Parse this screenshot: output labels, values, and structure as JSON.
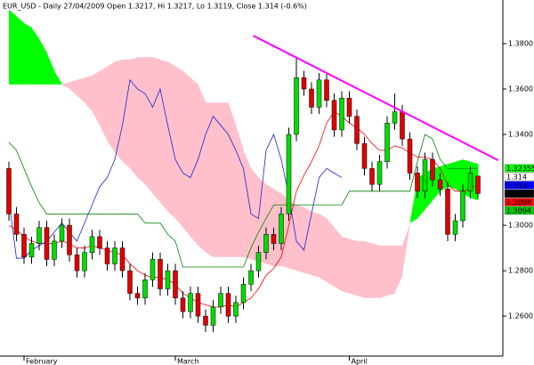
{
  "chart_data": {
    "type": "candlestick",
    "title": "EUR_USD - Daily 27/04/2009 Open 1.3217, Hi 1.3217, Lo 1.3119, Close 1.314 (-0.6%)",
    "categories": [
      null,
      null,
      "February",
      null,
      null,
      null,
      null,
      null,
      null,
      null,
      null,
      null,
      null,
      null,
      null,
      null,
      null,
      null,
      null,
      null,
      null,
      null,
      "March",
      null,
      null,
      null,
      null,
      null,
      null,
      null,
      null,
      null,
      null,
      null,
      null,
      null,
      null,
      null,
      null,
      null,
      null,
      null,
      null,
      null,
      null,
      "April",
      null,
      null,
      null,
      null,
      null,
      null,
      null,
      null,
      null,
      null,
      null,
      null,
      null,
      null,
      null,
      null,
      null
    ],
    "open": [
      1.325,
      1.305,
      1.296,
      1.286,
      1.292,
      1.299,
      1.285,
      1.293,
      1.3,
      1.287,
      1.28,
      1.288,
      1.295,
      1.29,
      1.283,
      1.29,
      1.28,
      1.27,
      1.268,
      1.276,
      1.285,
      1.272,
      1.28,
      1.268,
      1.262,
      1.27,
      1.26,
      1.256,
      1.264,
      1.27,
      1.26,
      1.266,
      1.274,
      1.28,
      1.288,
      1.296,
      1.292,
      1.305,
      1.34,
      1.365,
      1.36,
      1.352,
      1.364,
      1.355,
      1.342,
      1.356,
      1.348,
      1.336,
      1.325,
      1.318,
      1.328,
      1.345,
      1.35,
      1.338,
      1.323,
      1.315,
      1.329,
      1.32,
      1.316,
      1.296,
      1.302,
      1.315,
      1.3217
    ],
    "high": [
      1.328,
      1.308,
      1.299,
      1.295,
      1.302,
      1.302,
      1.296,
      1.303,
      1.303,
      1.29,
      1.291,
      1.298,
      1.298,
      1.293,
      1.293,
      1.293,
      1.283,
      1.273,
      1.279,
      1.288,
      1.288,
      1.283,
      1.283,
      1.271,
      1.273,
      1.273,
      1.263,
      1.267,
      1.273,
      1.273,
      1.269,
      1.277,
      1.283,
      1.291,
      1.299,
      1.299,
      1.308,
      1.343,
      1.374,
      1.368,
      1.363,
      1.367,
      1.367,
      1.358,
      1.359,
      1.359,
      1.351,
      1.339,
      1.328,
      1.331,
      1.348,
      1.358,
      1.353,
      1.341,
      1.326,
      1.332,
      1.332,
      1.323,
      1.319,
      1.305,
      1.318,
      1.326,
      1.3217
    ],
    "low": [
      1.302,
      1.293,
      1.283,
      1.283,
      1.289,
      1.282,
      1.282,
      1.29,
      1.284,
      1.277,
      1.277,
      1.285,
      1.287,
      1.28,
      1.28,
      1.277,
      1.267,
      1.265,
      1.265,
      1.273,
      1.269,
      1.269,
      1.265,
      1.259,
      1.259,
      1.257,
      1.253,
      1.253,
      1.261,
      1.257,
      1.257,
      1.263,
      1.271,
      1.277,
      1.285,
      1.289,
      1.289,
      1.302,
      1.337,
      1.357,
      1.349,
      1.349,
      1.352,
      1.339,
      1.339,
      1.345,
      1.333,
      1.322,
      1.315,
      1.315,
      1.325,
      1.342,
      1.335,
      1.32,
      1.312,
      1.312,
      1.317,
      1.313,
      1.293,
      1.293,
      1.299,
      1.312,
      1.3119
    ],
    "close": [
      1.305,
      1.296,
      1.286,
      1.292,
      1.299,
      1.285,
      1.293,
      1.3,
      1.287,
      1.28,
      1.288,
      1.295,
      1.29,
      1.283,
      1.29,
      1.28,
      1.27,
      1.268,
      1.276,
      1.285,
      1.272,
      1.28,
      1.268,
      1.262,
      1.27,
      1.26,
      1.256,
      1.264,
      1.27,
      1.26,
      1.266,
      1.274,
      1.28,
      1.288,
      1.296,
      1.292,
      1.305,
      1.34,
      1.365,
      1.36,
      1.352,
      1.364,
      1.355,
      1.342,
      1.356,
      1.348,
      1.336,
      1.325,
      1.318,
      1.328,
      1.345,
      1.35,
      1.338,
      1.323,
      1.315,
      1.329,
      1.32,
      1.316,
      1.296,
      1.302,
      1.315,
      1.323,
      1.314
    ],
    "up_color": "#00dd00",
    "down_color": "#e00000",
    "cloud": {
      "span_a": [
        1.395,
        1.392,
        1.389,
        1.387,
        1.382,
        1.376,
        1.368,
        1.362,
        1.36,
        1.357,
        1.354,
        1.35,
        1.344,
        1.337,
        1.332,
        1.328,
        1.325,
        1.321,
        1.318,
        1.314,
        1.31,
        1.306,
        1.303,
        1.299,
        1.295,
        1.291,
        1.288,
        1.286,
        1.286,
        1.286,
        1.286,
        1.286,
        1.285,
        1.284,
        1.283,
        1.282,
        1.282,
        1.281,
        1.28,
        1.279,
        1.278,
        1.277,
        1.275,
        1.273,
        1.271,
        1.27,
        1.269,
        1.268,
        1.268,
        1.268,
        1.269,
        1.27,
        1.278,
        1.301,
        1.321,
        1.323,
        1.325,
        1.326,
        1.327,
        1.328,
        1.329,
        1.328,
        1.327
      ],
      "span_b": [
        1.362,
        1.362,
        1.362,
        1.362,
        1.362,
        1.362,
        1.362,
        1.362,
        1.363,
        1.364,
        1.365,
        1.366,
        1.368,
        1.37,
        1.372,
        1.373,
        1.373,
        1.374,
        1.374,
        1.374,
        1.373,
        1.372,
        1.37,
        1.368,
        1.365,
        1.362,
        1.354,
        1.354,
        1.354,
        1.354,
        1.344,
        1.333,
        1.325,
        1.321,
        1.318,
        1.316,
        1.314,
        1.311,
        1.309,
        1.308,
        1.306,
        1.305,
        1.303,
        1.299,
        1.295,
        1.294,
        1.293,
        1.293,
        1.292,
        1.291,
        1.291,
        1.291,
        1.291,
        1.301,
        1.303,
        1.307,
        1.311,
        1.315,
        1.317,
        1.316,
        1.314,
        1.312,
        1.311
      ],
      "up_color": "#00ff00",
      "down_color": "#ffc0cb"
    },
    "lines": [
      {
        "color": "#ff0000",
        "values": [
          1.3,
          1.298,
          1.295,
          1.293,
          1.292,
          1.292,
          1.292,
          1.293,
          1.292,
          1.29,
          1.29,
          1.291,
          1.29,
          1.289,
          1.288,
          1.287,
          1.283,
          1.28,
          1.278,
          1.277,
          1.277,
          1.276,
          1.274,
          1.27,
          1.268,
          1.266,
          1.265,
          1.264,
          1.264,
          1.265,
          1.264,
          1.266,
          1.268,
          1.272,
          1.278,
          1.281,
          1.286,
          1.3,
          1.315,
          1.322,
          1.328,
          1.335,
          1.345,
          1.35,
          1.348,
          1.345,
          1.343,
          1.34,
          1.336,
          1.333,
          1.333,
          1.335,
          1.334,
          1.332,
          1.33,
          1.33,
          1.329,
          1.325,
          1.318,
          1.315,
          1.315,
          1.316,
          1.318
        ]
      },
      {
        "color": "#008000",
        "values": [
          1.3365,
          1.333,
          1.325,
          1.317,
          1.31,
          1.305,
          1.305,
          1.305,
          1.305,
          1.305,
          1.305,
          1.305,
          1.305,
          1.305,
          1.305,
          1.305,
          1.305,
          1.305,
          1.301,
          1.301,
          1.301,
          1.296,
          1.293,
          1.2816,
          1.2816,
          1.2816,
          1.2816,
          1.2816,
          1.2816,
          1.2816,
          1.2816,
          1.2816,
          1.29,
          1.297,
          1.303,
          1.309,
          1.309,
          1.309,
          1.309,
          1.309,
          1.309,
          1.309,
          1.309,
          1.309,
          1.309,
          1.315,
          1.315,
          1.315,
          1.315,
          1.315,
          1.315,
          1.315,
          1.315,
          1.315,
          1.328,
          1.34,
          1.338,
          1.329,
          1.325,
          1.325,
          1.325,
          1.325,
          1.325
        ]
      },
      {
        "color": "#2020d0",
        "values": [
          1.311,
          1.2855,
          1.2855,
          1.289,
          1.291,
          1.293,
          1.297,
          1.301,
          1.297,
          1.293,
          1.301,
          1.309,
          1.317,
          1.321,
          1.329,
          1.344,
          1.364,
          1.36,
          1.358,
          1.352,
          1.36,
          1.344,
          1.329,
          1.323,
          1.321,
          1.329,
          1.34,
          1.348,
          1.344,
          1.34,
          1.333,
          1.325,
          1.305,
          1.303,
          1.333,
          1.34,
          1.329,
          1.313,
          1.293,
          1.289,
          1.305,
          1.321,
          1.325,
          1.323,
          1.321,
          null,
          null,
          null,
          null,
          null,
          null,
          null,
          null,
          null,
          null,
          null,
          null,
          null,
          null,
          null,
          null,
          null,
          null
        ]
      }
    ],
    "trendline": {
      "color": "#ff00ff",
      "x": [
        32.3,
        64.7
      ],
      "values": [
        1.3835,
        1.3286
      ]
    },
    "price_labels": [
      {
        "value": 1.32355,
        "color": "#00ff00",
        "text_color": "#000000"
      },
      {
        "value": 1.314,
        "color": "#ffffff",
        "text_color": "#cc0000"
      },
      {
        "value": 1.314,
        "color": "#0000ff",
        "text_color": "#ffffff"
      },
      {
        "value": 1.314,
        "color": "#000000",
        "text_color": "#ffffff"
      },
      {
        "value": 1.3098,
        "color": "#ff0000",
        "text_color": "#ffffff"
      },
      {
        "value": 1.3094,
        "color": "#00cc00",
        "text_color": "#ffffff"
      }
    ],
    "ylim": [
      1.2424,
      1.3992
    ],
    "yticks": [
      {
        "value": 1.38,
        "label": "1.3800"
      },
      {
        "value": 1.36,
        "label": "1.3600"
      },
      {
        "value": 1.34,
        "label": "1.3400"
      },
      {
        "value": 1.3,
        "label": "1.3000"
      },
      {
        "value": 1.28,
        "label": "1.2800"
      },
      {
        "value": 1.26,
        "label": "1.2600"
      }
    ],
    "grid": false
  }
}
